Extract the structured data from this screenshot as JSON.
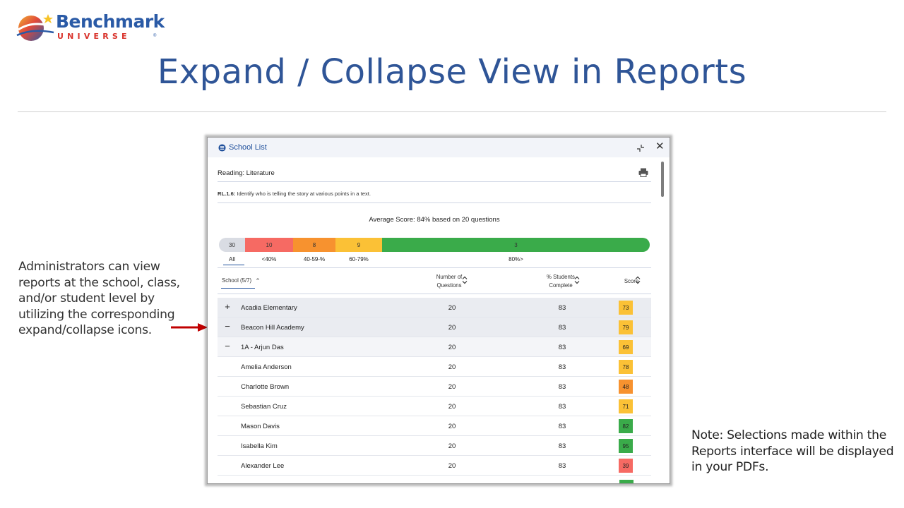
{
  "logo": {
    "main": "Benchmark",
    "sub": "UNIVERSE",
    "tm": "®"
  },
  "slide_title": "Expand / Collapse View in Reports",
  "left_note": "Administrators can view reports at the school, class, and/or student level by utilizing the corresponding expand/collapse icons.",
  "right_note": "Note: Selections made within the Reports interface will be displayed in your PDFs.",
  "window": {
    "title": "School List",
    "close_glyph": "✕",
    "subject": "Reading: Literature",
    "standard_code": "RL.1.6:",
    "standard_text": " Identify who is telling the story at various points in a text.",
    "average_score": "Average Score: 84% based on 20 questions",
    "distribution": [
      {
        "value": "30",
        "label": "All"
      },
      {
        "value": "10",
        "label": "<40%"
      },
      {
        "value": "8",
        "label": "40-59-%"
      },
      {
        "value": "9",
        "label": "60-79%"
      },
      {
        "value": "3",
        "label": "80%>"
      }
    ],
    "columns": {
      "school": "School (5/7)",
      "num_q_line1": "Number of",
      "num_q_line2": "Questions",
      "pct_line1": "% Students",
      "pct_line2": "Complete",
      "score": "Score"
    },
    "rows": [
      {
        "toggle": "+",
        "name": "Acadia Elementary",
        "questions": "20",
        "pct": "83",
        "score": "73",
        "level": "school"
      },
      {
        "toggle": "−",
        "name": "Beacon Hill Academy",
        "questions": "20",
        "pct": "83",
        "score": "79",
        "level": "school"
      },
      {
        "toggle": "−",
        "name": "1A - Arjun Das",
        "questions": "20",
        "pct": "83",
        "score": "69",
        "level": "class"
      },
      {
        "toggle": "",
        "name": "Amelia Anderson",
        "questions": "20",
        "pct": "83",
        "score": "78",
        "level": "student"
      },
      {
        "toggle": "",
        "name": "Charlotte Brown",
        "questions": "20",
        "pct": "83",
        "score": "48",
        "level": "student"
      },
      {
        "toggle": "",
        "name": "Sebastian Cruz",
        "questions": "20",
        "pct": "83",
        "score": "71",
        "level": "student"
      },
      {
        "toggle": "",
        "name": "Mason Davis",
        "questions": "20",
        "pct": "83",
        "score": "82",
        "level": "student"
      },
      {
        "toggle": "",
        "name": "Isabella Kim",
        "questions": "20",
        "pct": "83",
        "score": "95",
        "level": "student"
      },
      {
        "toggle": "",
        "name": "Alexander Lee",
        "questions": "20",
        "pct": "83",
        "score": "39",
        "level": "student"
      }
    ]
  },
  "colors": {
    "title_blue": "#2f5597",
    "score_red": "#f66a63",
    "score_orange": "#f7922f",
    "score_yellow": "#fbc136",
    "score_green": "#3aab4a",
    "arrow_red": "#c00000"
  },
  "icons": [
    "globe-logo-icon",
    "school-list-icon",
    "collapse-icon",
    "close-icon",
    "print-icon",
    "sort-icon",
    "plus-icon",
    "minus-icon"
  ]
}
